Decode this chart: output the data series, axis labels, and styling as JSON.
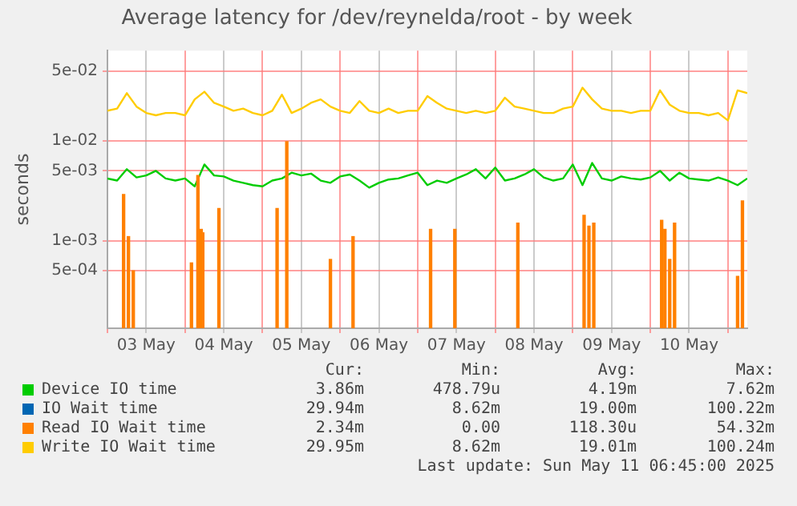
{
  "chart_data": {
    "type": "line",
    "title": "Average latency for /dev/reynelda/root - by week",
    "ylabel": "seconds",
    "log": "y",
    "grid": true,
    "legend": "bottom",
    "marker": "none",
    "line_style": "solid",
    "xlim": [
      "2025-05-03T00:00",
      "2025-05-11T06:00"
    ],
    "xticks": [
      {
        "value": "2025-05-03T00:00",
        "label": null
      },
      {
        "value": "2025-05-03T12:00",
        "label": "03 May"
      },
      {
        "value": "2025-05-04T00:00",
        "label": null
      },
      {
        "value": "2025-05-04T12:00",
        "label": "04 May"
      },
      {
        "value": "2025-05-05T00:00",
        "label": null
      },
      {
        "value": "2025-05-05T12:00",
        "label": "05 May"
      },
      {
        "value": "2025-05-06T00:00",
        "label": null
      },
      {
        "value": "2025-05-06T12:00",
        "label": "06 May"
      },
      {
        "value": "2025-05-07T00:00",
        "label": null
      },
      {
        "value": "2025-05-07T12:00",
        "label": "07 May"
      },
      {
        "value": "2025-05-08T00:00",
        "label": null
      },
      {
        "value": "2025-05-08T12:00",
        "label": "08 May"
      },
      {
        "value": "2025-05-09T00:00",
        "label": null
      },
      {
        "value": "2025-05-09T12:00",
        "label": "09 May"
      },
      {
        "value": "2025-05-10T00:00",
        "label": null
      },
      {
        "value": "2025-05-10T12:00",
        "label": "10 May"
      },
      {
        "value": "2025-05-11T00:00",
        "label": null
      }
    ],
    "ylim": [
      0.000133,
      0.08
    ],
    "yticks": [
      {
        "value": 0.0005,
        "label": "5e-04"
      },
      {
        "value": 0.001,
        "label": "1e-03"
      },
      {
        "value": 0.005,
        "label": "5e-03"
      },
      {
        "value": 0.01,
        "label": "1e-02"
      },
      {
        "value": 0.05,
        "label": "5e-02"
      }
    ],
    "x": [
      "2025-05-03T00:00",
      "2025-05-03T03:00",
      "2025-05-03T06:00",
      "2025-05-03T09:00",
      "2025-05-03T12:00",
      "2025-05-03T15:00",
      "2025-05-03T18:00",
      "2025-05-03T21:00",
      "2025-05-04T00:00",
      "2025-05-04T03:00",
      "2025-05-04T06:00",
      "2025-05-04T09:00",
      "2025-05-04T12:00",
      "2025-05-04T15:00",
      "2025-05-04T18:00",
      "2025-05-04T21:00",
      "2025-05-05T00:00",
      "2025-05-05T03:00",
      "2025-05-05T06:00",
      "2025-05-05T09:00",
      "2025-05-05T12:00",
      "2025-05-05T15:00",
      "2025-05-05T18:00",
      "2025-05-05T21:00",
      "2025-05-06T00:00",
      "2025-05-06T03:00",
      "2025-05-06T06:00",
      "2025-05-06T09:00",
      "2025-05-06T12:00",
      "2025-05-06T15:00",
      "2025-05-06T18:00",
      "2025-05-06T21:00",
      "2025-05-07T00:00",
      "2025-05-07T03:00",
      "2025-05-07T06:00",
      "2025-05-07T09:00",
      "2025-05-07T12:00",
      "2025-05-07T15:00",
      "2025-05-07T18:00",
      "2025-05-07T21:00",
      "2025-05-08T00:00",
      "2025-05-08T03:00",
      "2025-05-08T06:00",
      "2025-05-08T09:00",
      "2025-05-08T12:00",
      "2025-05-08T15:00",
      "2025-05-08T18:00",
      "2025-05-08T21:00",
      "2025-05-09T00:00",
      "2025-05-09T03:00",
      "2025-05-09T06:00",
      "2025-05-09T09:00",
      "2025-05-09T12:00",
      "2025-05-09T15:00",
      "2025-05-09T18:00",
      "2025-05-09T21:00",
      "2025-05-10T00:00",
      "2025-05-10T03:00",
      "2025-05-10T06:00",
      "2025-05-10T09:00",
      "2025-05-10T12:00",
      "2025-05-10T15:00",
      "2025-05-10T18:00",
      "2025-05-10T21:00",
      "2025-05-11T00:00",
      "2025-05-11T03:00",
      "2025-05-11T06:00"
    ],
    "series": [
      {
        "name": "Device IO time",
        "color": "#00cc00",
        "values": [
          0.0042,
          0.004,
          0.0052,
          0.0043,
          0.0045,
          0.005,
          0.0042,
          0.004,
          0.0042,
          0.0035,
          0.0058,
          0.0045,
          0.0044,
          0.004,
          0.0038,
          0.0036,
          0.0035,
          0.004,
          0.0042,
          0.0048,
          0.0045,
          0.0047,
          0.004,
          0.0038,
          0.0044,
          0.0046,
          0.004,
          0.0034,
          0.0038,
          0.0041,
          0.0042,
          0.0045,
          0.0048,
          0.0036,
          0.004,
          0.0038,
          0.0042,
          0.0046,
          0.0052,
          0.0042,
          0.0054,
          0.004,
          0.0042,
          0.0046,
          0.0052,
          0.0043,
          0.004,
          0.0042,
          0.0058,
          0.0036,
          0.006,
          0.0042,
          0.004,
          0.0044,
          0.0042,
          0.0041,
          0.0043,
          0.005,
          0.004,
          0.0048,
          0.0042,
          0.0041,
          0.004,
          0.0043,
          0.004,
          0.0036,
          0.0042
        ]
      },
      {
        "name": "IO Wait time",
        "color": "#0066b3",
        "values": [
          null,
          null,
          null,
          null,
          null,
          null,
          null,
          null,
          null,
          null,
          null,
          null,
          null,
          null,
          null,
          null,
          null,
          null,
          null,
          null,
          null,
          null,
          null,
          null,
          null,
          null,
          null,
          null,
          null,
          null,
          null,
          null,
          null,
          null,
          null,
          null,
          null,
          null,
          null,
          null,
          null,
          null,
          null,
          null,
          null,
          null,
          null,
          null,
          null,
          null,
          null,
          null,
          null,
          null,
          null,
          null,
          null,
          null,
          null,
          null,
          null,
          null,
          null,
          null,
          null,
          null,
          null
        ]
      },
      {
        "name": "Read IO Wait time",
        "type": "bar",
        "color": "#ff8000",
        "x": [
          "2025-05-03T05:00",
          "2025-05-03T06:30",
          "2025-05-03T08:00",
          "2025-05-04T02:00",
          "2025-05-04T04:00",
          "2025-05-04T05:00",
          "2025-05-04T05:30",
          "2025-05-04T10:30",
          "2025-05-05T04:30",
          "2025-05-05T07:30",
          "2025-05-05T21:00",
          "2025-05-06T04:00",
          "2025-05-07T04:00",
          "2025-05-07T11:30",
          "2025-05-08T07:00",
          "2025-05-09T03:30",
          "2025-05-09T05:00",
          "2025-05-09T06:30",
          "2025-05-10T03:30",
          "2025-05-10T04:30",
          "2025-05-10T06:00",
          "2025-05-10T07:30",
          "2025-05-11T03:00",
          "2025-05-11T04:30"
        ],
        "values": [
          0.0029,
          0.0011,
          0.0005,
          0.0006,
          0.0045,
          0.0013,
          0.0012,
          0.0021,
          0.0021,
          0.0098,
          0.00065,
          0.0011,
          0.0013,
          0.0013,
          0.0015,
          0.0018,
          0.0014,
          0.0015,
          0.0016,
          0.0013,
          0.00065,
          0.0015,
          0.00044,
          0.0025
        ]
      },
      {
        "name": "Write IO Wait time",
        "color": "#ffcc00",
        "values": [
          0.02,
          0.021,
          0.03,
          0.022,
          0.019,
          0.018,
          0.019,
          0.019,
          0.018,
          0.026,
          0.031,
          0.024,
          0.022,
          0.02,
          0.021,
          0.019,
          0.018,
          0.02,
          0.029,
          0.019,
          0.021,
          0.024,
          0.026,
          0.022,
          0.02,
          0.019,
          0.025,
          0.02,
          0.019,
          0.021,
          0.019,
          0.02,
          0.02,
          0.028,
          0.024,
          0.021,
          0.02,
          0.019,
          0.02,
          0.019,
          0.02,
          0.027,
          0.022,
          0.021,
          0.02,
          0.019,
          0.019,
          0.021,
          0.022,
          0.034,
          0.026,
          0.021,
          0.02,
          0.02,
          0.019,
          0.02,
          0.02,
          0.032,
          0.023,
          0.02,
          0.019,
          0.019,
          0.018,
          0.019,
          0.016,
          0.032,
          0.03
        ]
      }
    ],
    "annotations": [
      "Cur:",
      "Min:",
      "Avg:",
      "Max:",
      "3.86m",
      "478.79u",
      "4.19m",
      "7.62m",
      "29.94m",
      "8.62m",
      "19.00m",
      "100.22m",
      "2.34m",
      "0.00",
      "118.30u",
      "54.32m",
      "29.95m",
      "8.62m",
      "19.01m",
      "100.24m",
      "Last update: Sun May 11 06:45:00 2025"
    ]
  }
}
